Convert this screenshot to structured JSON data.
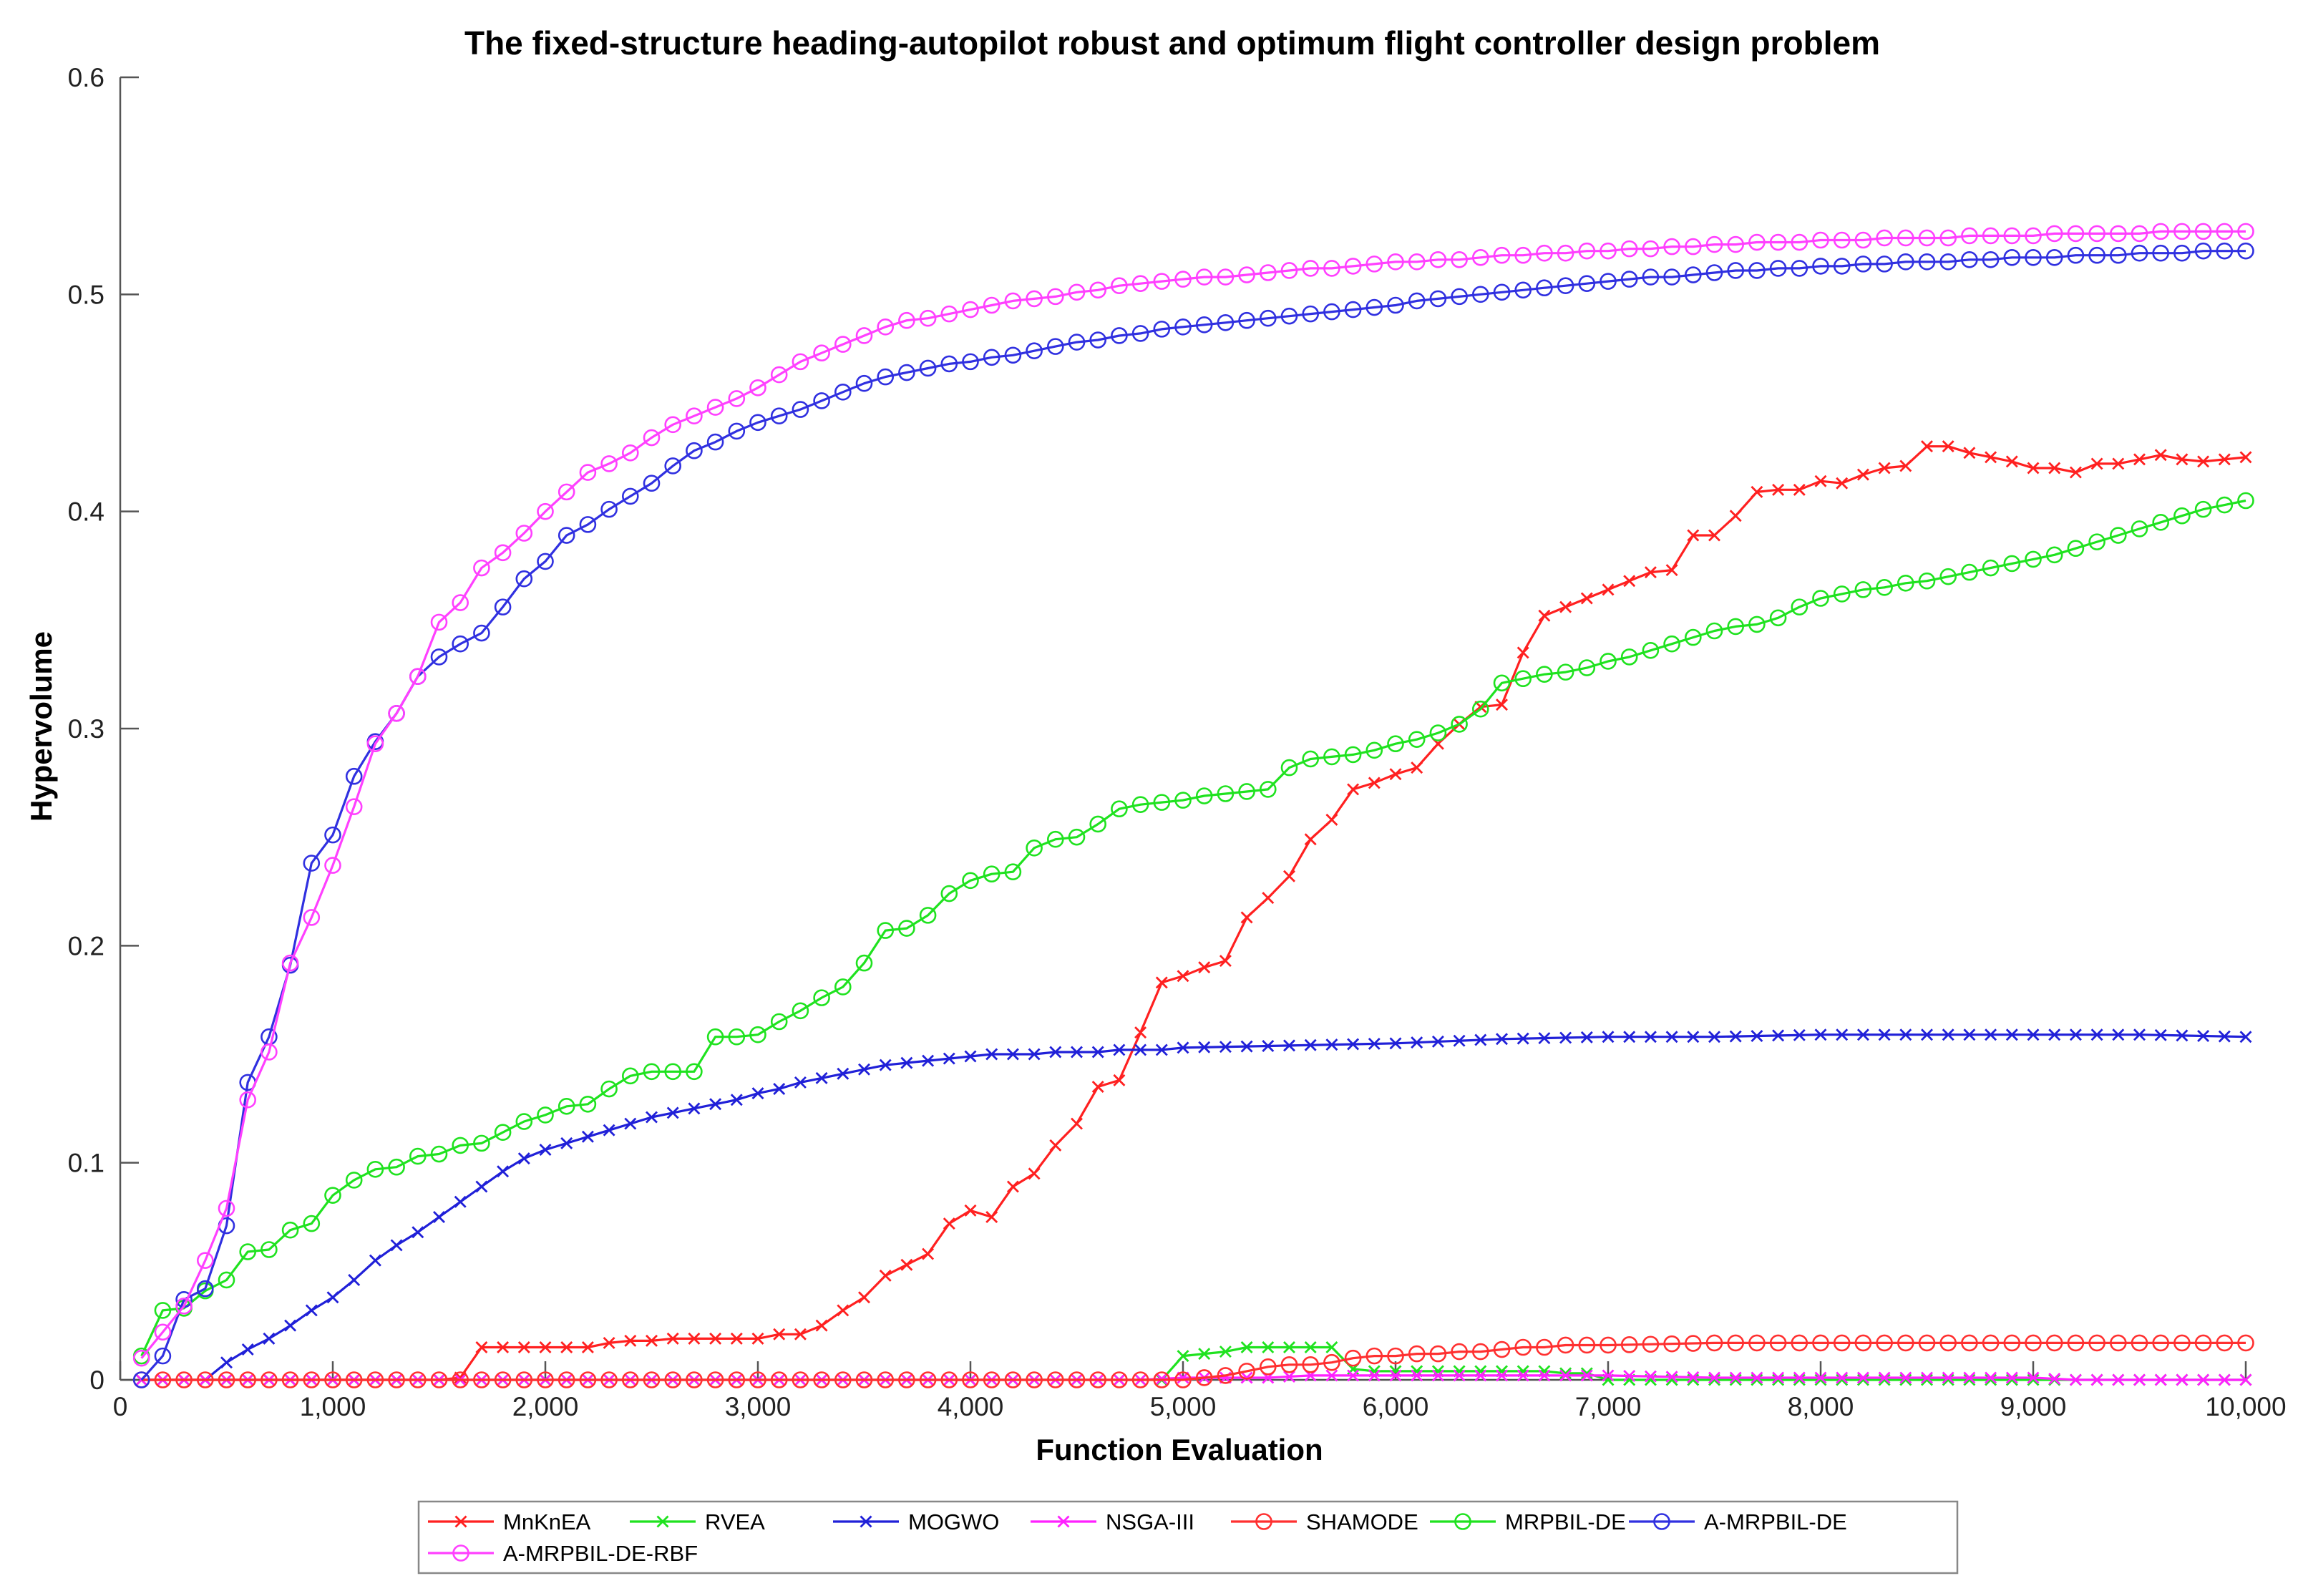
{
  "chart_data": {
    "type": "line",
    "title": "The fixed-structure heading-autopilot robust and optimum flight controller design problem",
    "xlabel": "Function Evaluation",
    "ylabel": "Hypervolume",
    "xlim": [
      0,
      10000
    ],
    "ylim": [
      0,
      0.6
    ],
    "xticks": [
      0,
      1000,
      2000,
      3000,
      4000,
      5000,
      6000,
      7000,
      8000,
      9000,
      10000
    ],
    "xtick_labels": [
      "0",
      "1,000",
      "2,000",
      "3,000",
      "4,000",
      "5,000",
      "6,000",
      "7,000",
      "8,000",
      "9,000",
      "10,000"
    ],
    "yticks": [
      0,
      0.1,
      0.2,
      0.3,
      0.4,
      0.5,
      0.6
    ],
    "ytick_labels": [
      "0",
      "0.1",
      "0.2",
      "0.3",
      "0.4",
      "0.5",
      "0.6"
    ],
    "grid": false,
    "legend_position": "bottom",
    "series": [
      {
        "name": "MnKnEA",
        "color": "#ff2020",
        "marker": "x",
        "x": [
          100,
          1500,
          1600,
          1700,
          1800,
          1900,
          2000,
          2100,
          2200,
          2300,
          2400,
          2500,
          2600,
          2700,
          2800,
          2900,
          3000,
          3100,
          3200,
          3300,
          3400,
          3500,
          3600,
          3700,
          3800,
          3900,
          4000,
          4100,
          4200,
          4300,
          4400,
          4500,
          4600,
          4700,
          4800,
          4900,
          5000,
          5100,
          5200,
          5300,
          5400,
          5500,
          5600,
          5700,
          5800,
          5900,
          6000,
          6100,
          6200,
          6300,
          6400,
          6500,
          6600,
          6700,
          6800,
          6900,
          7000,
          7100,
          7200,
          7300,
          7400,
          7500,
          7600,
          7700,
          7800,
          7900,
          8000,
          8100,
          8200,
          8300,
          8400,
          8500,
          8600,
          8700,
          8800,
          8900,
          9000,
          9100,
          9200,
          9300,
          9400,
          9500,
          9600,
          9700,
          9800,
          9900,
          10000
        ],
        "y": [
          0,
          0,
          0.001,
          0.015,
          0.015,
          0.015,
          0.015,
          0.015,
          0.015,
          0.017,
          0.018,
          0.018,
          0.019,
          0.019,
          0.019,
          0.019,
          0.019,
          0.021,
          0.021,
          0.025,
          0.032,
          0.038,
          0.048,
          0.053,
          0.058,
          0.072,
          0.078,
          0.075,
          0.089,
          0.095,
          0.108,
          0.118,
          0.135,
          0.138,
          0.16,
          0.183,
          0.186,
          0.19,
          0.193,
          0.213,
          0.222,
          0.232,
          0.249,
          0.258,
          0.272,
          0.275,
          0.279,
          0.282,
          0.293,
          0.302,
          0.31,
          0.311,
          0.335,
          0.352,
          0.356,
          0.36,
          0.364,
          0.368,
          0.372,
          0.373,
          0.389,
          0.389,
          0.398,
          0.409,
          0.41,
          0.41,
          0.414,
          0.413,
          0.417,
          0.42,
          0.421,
          0.43,
          0.43,
          0.427,
          0.425,
          0.423,
          0.42,
          0.42,
          0.418,
          0.422,
          0.422,
          0.424,
          0.426,
          0.424,
          0.423,
          0.424,
          0.425
        ]
      },
      {
        "name": "RVEA",
        "color": "#1fe21f",
        "marker": "x",
        "x": [
          100,
          4900,
          5000,
          5100,
          5200,
          5300,
          5400,
          5500,
          5600,
          5700,
          5800,
          5900,
          6000,
          6100,
          6200,
          6300,
          6400,
          6500,
          6600,
          6700,
          6800,
          6900,
          7000,
          7500,
          8000,
          8500,
          9000,
          9500,
          10000
        ],
        "y": [
          0,
          0,
          0.011,
          0.012,
          0.013,
          0.015,
          0.015,
          0.015,
          0.015,
          0.015,
          0.005,
          0.004,
          0.004,
          0.004,
          0.004,
          0.004,
          0.004,
          0.004,
          0.004,
          0.004,
          0.003,
          0.003,
          0,
          0,
          0,
          0,
          0,
          0,
          0
        ]
      },
      {
        "name": "MOGWO",
        "color": "#2020d8",
        "marker": "x",
        "x": [
          400,
          500,
          600,
          700,
          800,
          900,
          1000,
          1100,
          1200,
          1300,
          1400,
          1500,
          1600,
          1700,
          1800,
          1900,
          2000,
          2100,
          2200,
          2300,
          2400,
          2500,
          2600,
          2700,
          2800,
          2900,
          3000,
          3100,
          3200,
          3300,
          3400,
          3500,
          3600,
          3700,
          3800,
          3900,
          4000,
          4100,
          4200,
          4300,
          4400,
          4500,
          4600,
          4700,
          4800,
          4900,
          5000,
          5500,
          6000,
          6500,
          7000,
          7500,
          8000,
          8500,
          9000,
          9500,
          10000
        ],
        "y": [
          0,
          0.008,
          0.014,
          0.019,
          0.025,
          0.032,
          0.038,
          0.046,
          0.055,
          0.062,
          0.068,
          0.075,
          0.082,
          0.089,
          0.096,
          0.102,
          0.106,
          0.109,
          0.112,
          0.115,
          0.118,
          0.121,
          0.123,
          0.125,
          0.127,
          0.129,
          0.132,
          0.134,
          0.137,
          0.139,
          0.141,
          0.143,
          0.145,
          0.146,
          0.147,
          0.148,
          0.149,
          0.15,
          0.15,
          0.15,
          0.151,
          0.151,
          0.151,
          0.152,
          0.152,
          0.152,
          0.153,
          0.154,
          0.155,
          0.157,
          0.158,
          0.158,
          0.159,
          0.159,
          0.159,
          0.159,
          0.158
        ]
      },
      {
        "name": "NSGA-III",
        "color": "#ff20ff",
        "marker": "x",
        "x": [
          100,
          4800,
          5000,
          5200,
          5400,
          5600,
          5800,
          6000,
          6500,
          7000,
          7500,
          8000,
          8500,
          9000,
          9200,
          9500,
          10000
        ],
        "y": [
          0,
          0,
          0.001,
          0.001,
          0.001,
          0.002,
          0.002,
          0.002,
          0.002,
          0.002,
          0.001,
          0.001,
          0.001,
          0.001,
          0,
          0,
          0
        ]
      },
      {
        "name": "SHAMODE",
        "color": "#ff3030",
        "marker": "o",
        "x": [
          100,
          5000,
          5100,
          5200,
          5300,
          5400,
          5500,
          5600,
          5700,
          5800,
          5900,
          6000,
          6100,
          6200,
          6300,
          6400,
          6500,
          6600,
          6700,
          6800,
          6900,
          7000,
          7500,
          8000,
          8500,
          9000,
          9500,
          10000
        ],
        "y": [
          0,
          0,
          0.001,
          0.002,
          0.004,
          0.006,
          0.007,
          0.007,
          0.008,
          0.01,
          0.011,
          0.011,
          0.012,
          0.012,
          0.013,
          0.013,
          0.014,
          0.015,
          0.015,
          0.016,
          0.016,
          0.016,
          0.017,
          0.017,
          0.017,
          0.017,
          0.017,
          0.017
        ]
      },
      {
        "name": "MRPBIL-DE",
        "color": "#1fe21f",
        "marker": "o",
        "x": [
          100,
          200,
          300,
          400,
          500,
          600,
          700,
          800,
          900,
          1000,
          1100,
          1200,
          1300,
          1400,
          1500,
          1600,
          1700,
          1800,
          1900,
          2000,
          2100,
          2200,
          2300,
          2400,
          2500,
          2600,
          2700,
          2800,
          2900,
          3000,
          3100,
          3200,
          3300,
          3400,
          3500,
          3600,
          3700,
          3800,
          3900,
          4000,
          4100,
          4200,
          4300,
          4400,
          4500,
          4600,
          4700,
          4800,
          4900,
          5000,
          5100,
          5200,
          5300,
          5400,
          5500,
          5600,
          5700,
          5800,
          5900,
          6000,
          6100,
          6200,
          6300,
          6400,
          6500,
          6600,
          6700,
          6800,
          6900,
          7000,
          7100,
          7200,
          7300,
          7400,
          7500,
          7600,
          7700,
          7800,
          7900,
          8000,
          8100,
          8200,
          8300,
          8400,
          8500,
          8600,
          8700,
          8800,
          8900,
          9000,
          9100,
          9200,
          9300,
          9400,
          9500,
          9600,
          9700,
          9800,
          9900,
          10000
        ],
        "y": [
          0.011,
          0.032,
          0.033,
          0.041,
          0.046,
          0.059,
          0.06,
          0.069,
          0.072,
          0.085,
          0.092,
          0.097,
          0.098,
          0.103,
          0.104,
          0.108,
          0.109,
          0.114,
          0.119,
          0.122,
          0.126,
          0.127,
          0.134,
          0.14,
          0.142,
          0.142,
          0.142,
          0.158,
          0.158,
          0.159,
          0.165,
          0.17,
          0.176,
          0.181,
          0.192,
          0.207,
          0.208,
          0.214,
          0.224,
          0.23,
          0.233,
          0.234,
          0.245,
          0.249,
          0.25,
          0.256,
          0.263,
          0.265,
          0.266,
          0.267,
          0.269,
          0.27,
          0.271,
          0.272,
          0.282,
          0.286,
          0.287,
          0.288,
          0.29,
          0.293,
          0.295,
          0.298,
          0.302,
          0.309,
          0.321,
          0.323,
          0.325,
          0.326,
          0.328,
          0.331,
          0.333,
          0.336,
          0.339,
          0.342,
          0.345,
          0.347,
          0.348,
          0.351,
          0.356,
          0.36,
          0.362,
          0.364,
          0.365,
          0.367,
          0.368,
          0.37,
          0.372,
          0.374,
          0.376,
          0.378,
          0.38,
          0.383,
          0.386,
          0.389,
          0.392,
          0.395,
          0.398,
          0.401,
          0.403,
          0.405
        ]
      },
      {
        "name": "A-MRPBIL-DE",
        "color": "#3030e0",
        "marker": "o",
        "x": [
          100,
          200,
          300,
          400,
          500,
          600,
          700,
          800,
          900,
          1000,
          1100,
          1200,
          1300,
          1400,
          1500,
          1600,
          1700,
          1800,
          1900,
          2000,
          2100,
          2200,
          2300,
          2400,
          2500,
          2600,
          2700,
          2800,
          2900,
          3000,
          3100,
          3200,
          3300,
          3400,
          3500,
          3600,
          3700,
          3800,
          3900,
          4000,
          4100,
          4200,
          4300,
          4400,
          4500,
          4600,
          4700,
          4800,
          4900,
          5000,
          5100,
          5200,
          5300,
          5400,
          5500,
          5600,
          5700,
          5800,
          5900,
          6000,
          6100,
          6200,
          6300,
          6400,
          6500,
          6600,
          6700,
          6800,
          6900,
          7000,
          7100,
          7200,
          7300,
          7400,
          7500,
          7600,
          7700,
          7800,
          7900,
          8000,
          8100,
          8200,
          8300,
          8400,
          8500,
          8600,
          8700,
          8800,
          8900,
          9000,
          9100,
          9200,
          9300,
          9400,
          9500,
          9600,
          9700,
          9800,
          9900,
          10000
        ],
        "y": [
          0,
          0.011,
          0.037,
          0.042,
          0.071,
          0.137,
          0.158,
          0.191,
          0.238,
          0.251,
          0.278,
          0.294,
          0.307,
          0.324,
          0.333,
          0.339,
          0.344,
          0.356,
          0.369,
          0.377,
          0.389,
          0.394,
          0.401,
          0.407,
          0.413,
          0.421,
          0.428,
          0.432,
          0.437,
          0.441,
          0.444,
          0.447,
          0.451,
          0.455,
          0.459,
          0.462,
          0.464,
          0.466,
          0.468,
          0.469,
          0.471,
          0.472,
          0.474,
          0.476,
          0.478,
          0.479,
          0.481,
          0.482,
          0.484,
          0.485,
          0.486,
          0.487,
          0.488,
          0.489,
          0.49,
          0.491,
          0.492,
          0.493,
          0.494,
          0.495,
          0.497,
          0.498,
          0.499,
          0.5,
          0.501,
          0.502,
          0.503,
          0.504,
          0.505,
          0.506,
          0.507,
          0.508,
          0.508,
          0.509,
          0.51,
          0.511,
          0.511,
          0.512,
          0.512,
          0.513,
          0.513,
          0.514,
          0.514,
          0.515,
          0.515,
          0.515,
          0.516,
          0.516,
          0.517,
          0.517,
          0.517,
          0.518,
          0.518,
          0.518,
          0.519,
          0.519,
          0.519,
          0.52,
          0.52,
          0.52
        ]
      },
      {
        "name": "A-MRPBIL-DE-RBF",
        "color": "#ff40ff",
        "marker": "o",
        "x": [
          100,
          200,
          300,
          400,
          500,
          600,
          700,
          800,
          900,
          1000,
          1100,
          1200,
          1300,
          1400,
          1500,
          1600,
          1700,
          1800,
          1900,
          2000,
          2100,
          2200,
          2300,
          2400,
          2500,
          2600,
          2700,
          2800,
          2900,
          3000,
          3100,
          3200,
          3300,
          3400,
          3500,
          3600,
          3700,
          3800,
          3900,
          4000,
          4100,
          4200,
          4300,
          4400,
          4500,
          4600,
          4700,
          4800,
          4900,
          5000,
          5100,
          5200,
          5300,
          5400,
          5500,
          5600,
          5700,
          5800,
          5900,
          6000,
          6100,
          6200,
          6300,
          6400,
          6500,
          6600,
          6700,
          6800,
          6900,
          7000,
          7100,
          7200,
          7300,
          7400,
          7500,
          7600,
          7700,
          7800,
          7900,
          8000,
          8100,
          8200,
          8300,
          8400,
          8500,
          8600,
          8700,
          8800,
          8900,
          9000,
          9100,
          9200,
          9300,
          9400,
          9500,
          9600,
          9700,
          9800,
          9900,
          10000
        ],
        "y": [
          0.01,
          0.022,
          0.034,
          0.055,
          0.079,
          0.129,
          0.151,
          0.192,
          0.213,
          0.237,
          0.264,
          0.293,
          0.307,
          0.324,
          0.349,
          0.358,
          0.374,
          0.381,
          0.39,
          0.4,
          0.409,
          0.418,
          0.422,
          0.427,
          0.434,
          0.44,
          0.444,
          0.448,
          0.452,
          0.457,
          0.463,
          0.469,
          0.473,
          0.477,
          0.481,
          0.485,
          0.488,
          0.489,
          0.491,
          0.493,
          0.495,
          0.497,
          0.498,
          0.499,
          0.501,
          0.502,
          0.504,
          0.505,
          0.506,
          0.507,
          0.508,
          0.508,
          0.509,
          0.51,
          0.511,
          0.512,
          0.512,
          0.513,
          0.514,
          0.515,
          0.515,
          0.516,
          0.516,
          0.517,
          0.518,
          0.518,
          0.519,
          0.519,
          0.52,
          0.52,
          0.521,
          0.521,
          0.522,
          0.522,
          0.523,
          0.523,
          0.524,
          0.524,
          0.524,
          0.525,
          0.525,
          0.525,
          0.526,
          0.526,
          0.526,
          0.526,
          0.527,
          0.527,
          0.527,
          0.527,
          0.528,
          0.528,
          0.528,
          0.528,
          0.528,
          0.529,
          0.529,
          0.529,
          0.529,
          0.529
        ]
      }
    ]
  }
}
